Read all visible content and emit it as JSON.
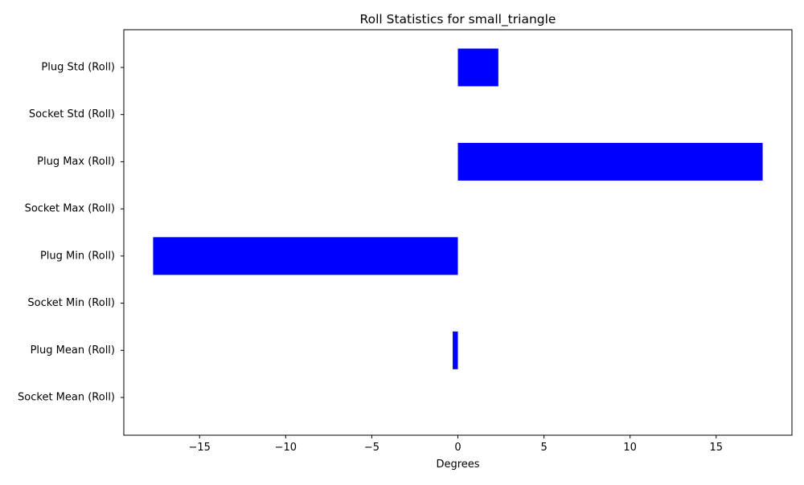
{
  "chart_data": {
    "type": "bar",
    "orientation": "horizontal",
    "title": "Roll Statistics for small_triangle",
    "xlabel": "Degrees",
    "ylabel": "",
    "xlim": [
      -19.4,
      19.4
    ],
    "xticks": [
      -15,
      -10,
      -5,
      0,
      5,
      10,
      15
    ],
    "xtick_labels": [
      "−15",
      "−10",
      "−5",
      "0",
      "5",
      "10",
      "15"
    ],
    "categories": [
      "Socket Mean (Roll)",
      "Plug Mean (Roll)",
      "Socket Min (Roll)",
      "Plug Min (Roll)",
      "Socket Max (Roll)",
      "Plug Max (Roll)",
      "Socket Std (Roll)",
      "Plug Std (Roll)"
    ],
    "values": [
      0,
      -0.3,
      0,
      -17.7,
      0,
      17.7,
      0,
      2.35
    ],
    "bar_color": "#0000ff",
    "grid": false
  }
}
